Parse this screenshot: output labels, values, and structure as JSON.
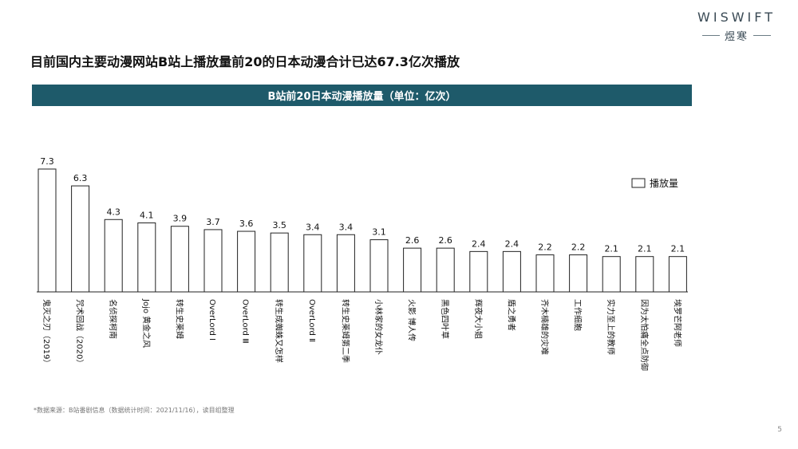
{
  "logo": {
    "word": "WISWIFT",
    "sub": "煜寒"
  },
  "headline": "目前国内主要动漫网站B站上播放量前20的日本动漫合计已达67.3亿次播放",
  "footnote": "*数据来源：B站番剧信息（数据统计时间：2021/11/16），读目组整理",
  "page_number": "5",
  "colors": {
    "banner": "#1e5a6a",
    "bar_fill": "#ffffff",
    "bar_stroke": "#222222"
  },
  "chart_data": {
    "type": "bar",
    "title": "B站前20日本动漫播放量（单位：亿次）",
    "legend": {
      "label": "播放量",
      "position": "top-right"
    },
    "grid": false,
    "ylim": [
      0,
      8
    ],
    "categories": [
      "鬼灭之刃（2019）",
      "咒术回战（2020）",
      "名侦探柯南",
      "Jojo 黄金之风",
      "转生史莱姆",
      "OverLord Ⅰ",
      "OverLord Ⅲ",
      "转生成蜘蛛又怎样",
      "OverLord Ⅱ",
      "转生史莱姆第二季",
      "小林家的女龙仆",
      "火影 博人传",
      "黑色四叶草",
      "辉夜大小姐",
      "盾之勇者",
      "齐木楠雄的灾难",
      "工作细胞",
      "实力至上的教师",
      "因为太怕痛全点防御",
      "埃罗芒阿老师"
    ],
    "values": [
      7.3,
      6.3,
      4.3,
      4.1,
      3.9,
      3.7,
      3.6,
      3.5,
      3.4,
      3.4,
      3.1,
      2.6,
      2.6,
      2.4,
      2.4,
      2.2,
      2.2,
      2.1,
      2.1,
      2.1
    ],
    "value_labels": [
      "7.3",
      "6.3",
      "4.3",
      "4.1",
      "3.9",
      "3.7",
      "3.6",
      "3.5",
      "3.4",
      "3.4",
      "3.1",
      "2.6",
      "2.6",
      "2.4",
      "2.4",
      "2.2",
      "2.2",
      "2.1",
      "2.1",
      "2.1"
    ]
  }
}
